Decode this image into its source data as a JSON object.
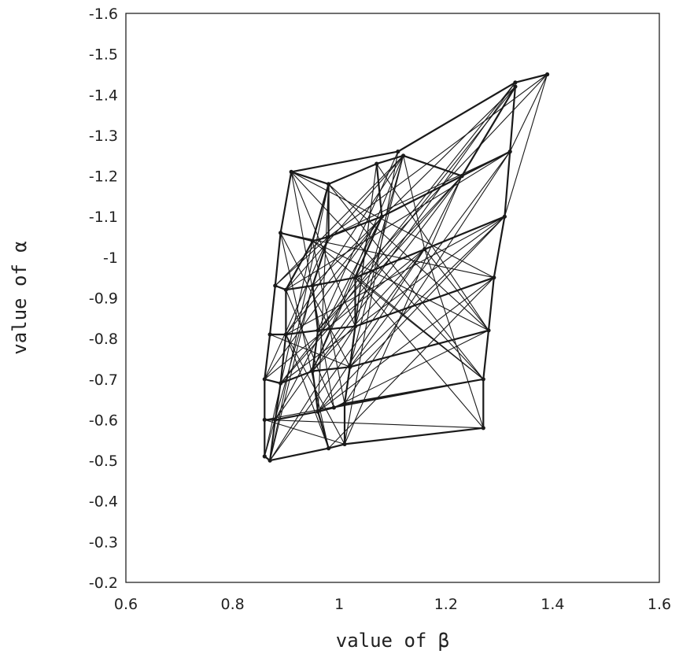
{
  "chart_data": {
    "type": "line",
    "title": "",
    "xlabel": "value of β",
    "ylabel": "value of α",
    "xlim": [
      0.6,
      1.6
    ],
    "ylim": [
      -0.2,
      -1.6
    ],
    "y_axis_inverted": true,
    "x_ticks": [
      "0.6",
      "0.8",
      "1",
      "1.2",
      "1.4",
      "1.6"
    ],
    "y_ticks": [
      "-0.2",
      "-0.3",
      "-0.4",
      "-0.5",
      "-0.6",
      "-0.7",
      "-0.8",
      "-0.9",
      "-1",
      "-1.1",
      "-1.2",
      "-1.3",
      "-1.4",
      "-1.5",
      "-1.6"
    ],
    "grid": false,
    "legend": "none",
    "line_color": "#1a1a1a",
    "series": [
      {
        "points": [
          [
            0.86,
            -0.51
          ],
          [
            0.87,
            -0.5
          ],
          [
            0.98,
            -0.53
          ],
          [
            1.01,
            -0.54
          ],
          [
            1.27,
            -0.58
          ]
        ]
      },
      {
        "points": [
          [
            0.86,
            -0.6
          ],
          [
            0.88,
            -0.6
          ],
          [
            0.96,
            -0.62
          ],
          [
            0.99,
            -0.63
          ],
          [
            1.01,
            -0.64
          ],
          [
            1.27,
            -0.7
          ]
        ]
      },
      {
        "points": [
          [
            0.86,
            -0.7
          ],
          [
            0.89,
            -0.69
          ],
          [
            0.95,
            -0.72
          ],
          [
            1.02,
            -0.73
          ],
          [
            1.28,
            -0.82
          ]
        ]
      },
      {
        "points": [
          [
            0.87,
            -0.81
          ],
          [
            0.9,
            -0.81
          ],
          [
            0.96,
            -0.82
          ],
          [
            1.03,
            -0.83
          ],
          [
            1.29,
            -0.95
          ]
        ]
      },
      {
        "points": [
          [
            0.88,
            -0.93
          ],
          [
            0.9,
            -0.92
          ],
          [
            0.95,
            -0.93
          ],
          [
            1.03,
            -0.95
          ],
          [
            1.31,
            -1.1
          ]
        ]
      },
      {
        "points": [
          [
            0.89,
            -1.06
          ],
          [
            0.95,
            -1.04
          ],
          [
            0.98,
            -1.05
          ],
          [
            1.08,
            -1.1
          ],
          [
            1.32,
            -1.26
          ]
        ]
      },
      {
        "points": [
          [
            0.91,
            -1.21
          ],
          [
            0.98,
            -1.18
          ],
          [
            1.07,
            -1.23
          ],
          [
            1.12,
            -1.25
          ],
          [
            1.23,
            -1.2
          ],
          [
            1.33,
            -1.42
          ]
        ]
      },
      {
        "points": [
          [
            0.91,
            -1.21
          ],
          [
            1.11,
            -1.26
          ],
          [
            1.33,
            -1.43
          ],
          [
            1.39,
            -1.45
          ]
        ]
      },
      {
        "points": [
          [
            0.86,
            -0.51
          ],
          [
            0.86,
            -0.6
          ],
          [
            0.86,
            -0.7
          ],
          [
            0.87,
            -0.81
          ],
          [
            0.88,
            -0.93
          ],
          [
            0.89,
            -1.06
          ],
          [
            0.91,
            -1.21
          ]
        ]
      },
      {
        "points": [
          [
            0.87,
            -0.5
          ],
          [
            0.88,
            -0.6
          ],
          [
            0.89,
            -0.69
          ],
          [
            0.9,
            -0.81
          ],
          [
            0.9,
            -0.92
          ],
          [
            0.95,
            -1.04
          ],
          [
            0.98,
            -1.18
          ]
        ]
      },
      {
        "points": [
          [
            0.98,
            -0.53
          ],
          [
            0.96,
            -0.62
          ],
          [
            0.95,
            -0.72
          ],
          [
            0.96,
            -0.82
          ],
          [
            0.95,
            -0.93
          ],
          [
            0.98,
            -1.05
          ],
          [
            0.98,
            -1.18
          ]
        ]
      },
      {
        "points": [
          [
            1.01,
            -0.54
          ],
          [
            1.01,
            -0.64
          ],
          [
            1.02,
            -0.73
          ],
          [
            1.03,
            -0.83
          ],
          [
            1.03,
            -0.95
          ],
          [
            1.08,
            -1.1
          ],
          [
            1.07,
            -1.23
          ]
        ]
      },
      {
        "points": [
          [
            1.27,
            -0.58
          ],
          [
            1.27,
            -0.7
          ],
          [
            1.28,
            -0.82
          ],
          [
            1.29,
            -0.95
          ],
          [
            1.31,
            -1.1
          ],
          [
            1.32,
            -1.26
          ],
          [
            1.33,
            -1.42
          ]
        ]
      },
      {
        "points": [
          [
            1.31,
            -1.1
          ],
          [
            1.39,
            -1.45
          ],
          [
            1.32,
            -1.26
          ],
          [
            1.23,
            -1.2
          ],
          [
            1.16,
            -1.02
          ],
          [
            1.12,
            -1.25
          ]
        ]
      },
      {
        "points": [
          [
            0.86,
            -0.51
          ],
          [
            0.95,
            -1.04
          ],
          [
            1.01,
            -0.64
          ],
          [
            1.07,
            -1.23
          ],
          [
            1.02,
            -0.73
          ],
          [
            1.12,
            -1.25
          ],
          [
            1.03,
            -0.83
          ]
        ]
      },
      {
        "points": [
          [
            0.87,
            -0.5
          ],
          [
            0.98,
            -1.18
          ],
          [
            0.96,
            -0.62
          ],
          [
            1.16,
            -1.02
          ],
          [
            0.95,
            -0.72
          ],
          [
            1.23,
            -1.2
          ],
          [
            0.96,
            -0.82
          ]
        ]
      },
      {
        "points": [
          [
            0.88,
            -0.6
          ],
          [
            1.08,
            -1.1
          ],
          [
            0.9,
            -0.81
          ],
          [
            1.31,
            -1.1
          ],
          [
            0.89,
            -0.69
          ],
          [
            1.33,
            -1.42
          ],
          [
            0.95,
            -0.93
          ]
        ]
      },
      {
        "points": [
          [
            0.86,
            -0.7
          ],
          [
            1.16,
            -1.02
          ],
          [
            1.27,
            -0.58
          ],
          [
            1.03,
            -0.95
          ],
          [
            1.27,
            -0.7
          ],
          [
            0.99,
            -0.63
          ],
          [
            1.28,
            -0.82
          ]
        ]
      },
      {
        "points": [
          [
            0.88,
            -0.93
          ],
          [
            1.12,
            -1.25
          ],
          [
            0.9,
            -0.92
          ],
          [
            1.32,
            -1.26
          ],
          [
            0.98,
            -1.05
          ],
          [
            1.39,
            -1.45
          ],
          [
            1.03,
            -0.95
          ]
        ]
      },
      {
        "points": [
          [
            0.89,
            -1.06
          ],
          [
            1.29,
            -0.95
          ],
          [
            0.91,
            -1.21
          ],
          [
            1.27,
            -0.7
          ],
          [
            0.98,
            -1.18
          ],
          [
            1.28,
            -0.82
          ],
          [
            1.07,
            -1.23
          ]
        ]
      },
      {
        "points": [
          [
            0.86,
            -0.6
          ],
          [
            1.01,
            -0.54
          ],
          [
            0.9,
            -0.81
          ],
          [
            0.98,
            -0.53
          ],
          [
            0.89,
            -1.06
          ],
          [
            1.02,
            -0.73
          ],
          [
            0.87,
            -0.81
          ]
        ]
      },
      {
        "points": [
          [
            0.9,
            -0.92
          ],
          [
            0.99,
            -0.63
          ],
          [
            0.91,
            -1.21
          ],
          [
            1.03,
            -0.83
          ],
          [
            0.87,
            -0.5
          ],
          [
            0.95,
            -0.93
          ],
          [
            0.86,
            -0.51
          ]
        ]
      },
      {
        "points": [
          [
            0.89,
            -0.69
          ],
          [
            1.23,
            -1.2
          ],
          [
            1.01,
            -0.54
          ],
          [
            1.11,
            -1.26
          ],
          [
            0.96,
            -0.82
          ],
          [
            1.33,
            -1.43
          ],
          [
            0.88,
            -0.6
          ]
        ]
      },
      {
        "points": [
          [
            0.9,
            -0.81
          ],
          [
            1.12,
            -1.25
          ],
          [
            0.95,
            -0.72
          ],
          [
            1.08,
            -1.1
          ],
          [
            0.86,
            -0.7
          ],
          [
            0.98,
            -1.05
          ],
          [
            0.88,
            -0.93
          ]
        ]
      },
      {
        "points": [
          [
            0.98,
            -0.53
          ],
          [
            1.29,
            -0.95
          ],
          [
            0.96,
            -0.62
          ],
          [
            1.31,
            -1.1
          ],
          [
            1.02,
            -0.73
          ],
          [
            1.32,
            -1.26
          ],
          [
            1.01,
            -0.64
          ]
        ]
      },
      {
        "points": [
          [
            0.87,
            -0.5
          ],
          [
            1.16,
            -1.02
          ],
          [
            1.28,
            -0.82
          ],
          [
            0.95,
            -1.04
          ],
          [
            1.27,
            -0.7
          ],
          [
            0.86,
            -0.6
          ],
          [
            1.27,
            -0.58
          ]
        ]
      }
    ]
  }
}
